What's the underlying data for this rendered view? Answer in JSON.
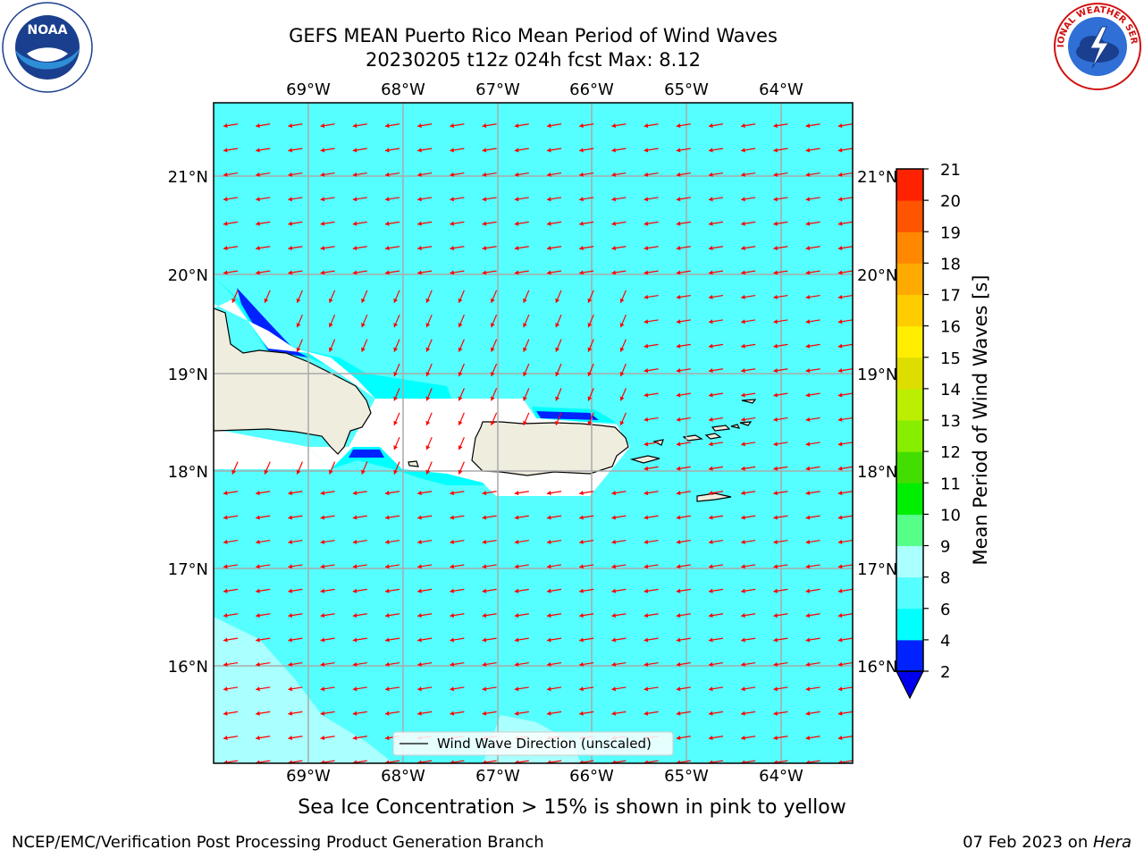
{
  "header": {
    "title_line1": "GEFS MEAN Puerto Rico Mean Period of Wind Waves",
    "title_line2": "20230205 t12z 024h fcst   Max: 8.12"
  },
  "map": {
    "lon_labels": [
      "69°W",
      "68°W",
      "67°W",
      "66°W",
      "65°W",
      "64°W"
    ],
    "lat_labels": [
      "21°N",
      "20°N",
      "19°N",
      "18°N",
      "17°N",
      "16°N"
    ],
    "legend_label": "Wind Wave Direction (unscaled)",
    "land_color": "#efedde",
    "ocean_color": "#55ffff",
    "arrow_color": "#ff0000"
  },
  "colorbar": {
    "label": "Mean Period of Wind Waves [s]",
    "ticks": [
      "2",
      "4",
      "6",
      "8",
      "9",
      "10",
      "11",
      "12",
      "13",
      "14",
      "15",
      "16",
      "17",
      "18",
      "19",
      "20",
      "21"
    ],
    "colors": [
      "#0022ff",
      "#00ffff",
      "#55ffff",
      "#aaffff",
      "#55ff88",
      "#00ee00",
      "#44dd00",
      "#88ee00",
      "#bbee00",
      "#dddd00",
      "#ffee00",
      "#ffcc00",
      "#ffaa00",
      "#ff8800",
      "#ff5500",
      "#ff2200",
      "#ff0000"
    ],
    "extend_color": "#0000ee"
  },
  "subtitle": "Sea Ice Concentration > 15% is shown in pink to yellow",
  "footer": {
    "left": "NCEP/EMC/Verification Post Processing Product Generation Branch",
    "right_prefix": "07 Feb 2023 on ",
    "right_host": "Hera"
  },
  "logos": {
    "noaa_text": "NOAA",
    "nws_text": "NATIONAL WEATHER SERVICE"
  }
}
